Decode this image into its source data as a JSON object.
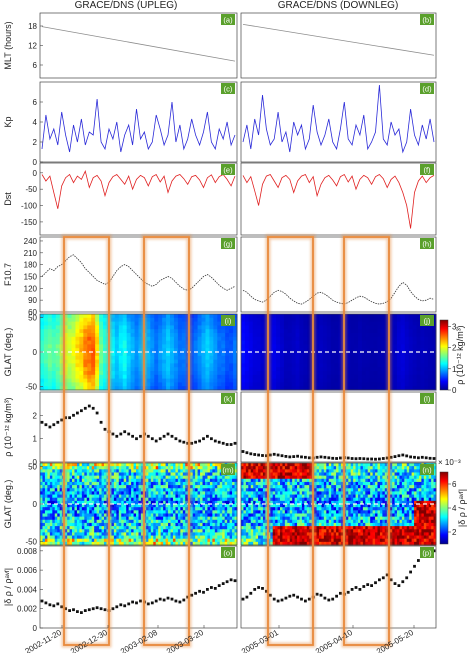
{
  "columns": [
    {
      "title": "GRACE/DNS (UPLEG)",
      "date_ticks": [
        "2002-11-20",
        "2002-12-30",
        "2003-02-08",
        "2003-03-20"
      ]
    },
    {
      "title": "GRACE/DNS (DOWNLEG)",
      "date_ticks": [
        "2005-03-01",
        "2005-04-10",
        "2005-05-20"
      ]
    }
  ],
  "panel_labels": [
    "(a)",
    "(b)",
    "(c)",
    "(d)",
    "(e)",
    "(f)",
    "(g)",
    "(h)",
    "(i)",
    "(j)",
    "(k)",
    "(l)",
    "(m)",
    "(n)",
    "(o)",
    "(p)"
  ],
  "colors": {
    "kp_line": "#2a2ad8",
    "dst_line": "#e02020",
    "mlt_line": "#8c8c8c",
    "highlight_box": "#e88a3c",
    "panel_label_bg": "#5aa02c",
    "dashed_line": "#ffffff"
  },
  "colorbars": {
    "rho": {
      "label": "ρ (10⁻¹² kg/m³)",
      "ticks": [
        "0",
        "1",
        "2",
        "3"
      ]
    },
    "drho": {
      "label": "|δ ρ / ρᵃᵛᶠ|",
      "exponent": "× 10⁻³",
      "ticks": [
        "2",
        "4",
        "6"
      ]
    }
  },
  "chart_data": [
    {
      "panel": "MLT",
      "type": "line",
      "ylabel": "MLT (hours)",
      "ylim": [
        2,
        22
      ],
      "yticks": [
        "6",
        "12",
        "18"
      ],
      "series": [
        {
          "column": "UPLEG",
          "x": [
            "2002-11-01",
            "2003-04-05"
          ],
          "y": [
            17.8,
            7.2
          ]
        },
        {
          "column": "DOWNLEG",
          "x": [
            "2005-02-10",
            "2005-06-10"
          ],
          "y": [
            18.5,
            9.0
          ]
        }
      ]
    },
    {
      "panel": "Kp",
      "type": "line",
      "ylabel": "Kp",
      "ylim": [
        0,
        8
      ],
      "yticks": [
        "0",
        "2",
        "4",
        "6"
      ],
      "series": [
        {
          "column": "UPLEG",
          "y": [
            1.3,
            4.7,
            2.3,
            3.3,
            1.7,
            5.0,
            2.7,
            1.0,
            3.7,
            2.0,
            4.3,
            1.7,
            3.0,
            2.7,
            6.3,
            2.0,
            1.3,
            3.3,
            2.3,
            4.0,
            1.0,
            2.7,
            3.7,
            1.7,
            5.3,
            2.3,
            3.0,
            1.3,
            2.0,
            4.7,
            3.3,
            1.7,
            2.7,
            6.0,
            2.0,
            3.7,
            1.3,
            2.3,
            4.3,
            2.7,
            1.7,
            3.0,
            5.0,
            2.0,
            1.3,
            3.3,
            2.3,
            4.0,
            1.7,
            2.7
          ]
        },
        {
          "column": "DOWNLEG",
          "y": [
            2.0,
            3.7,
            1.3,
            4.3,
            2.7,
            6.7,
            3.3,
            1.7,
            2.3,
            5.0,
            2.0,
            3.0,
            1.0,
            4.0,
            2.7,
            3.7,
            1.3,
            2.3,
            5.7,
            3.0,
            1.7,
            2.7,
            4.3,
            2.0,
            1.3,
            3.3,
            6.0,
            2.3,
            1.7,
            3.7,
            2.7,
            4.7,
            1.3,
            2.0,
            3.0,
            7.7,
            2.3,
            1.7,
            4.0,
            2.7,
            3.3,
            1.0,
            2.0,
            5.3,
            2.7,
            1.7,
            3.7,
            2.3,
            4.3,
            2.0
          ]
        }
      ]
    },
    {
      "panel": "Dst",
      "type": "line",
      "ylabel": "Dst",
      "ylim": [
        -190,
        30
      ],
      "yticks": [
        "-150",
        "-100",
        "-50",
        "0"
      ],
      "series": [
        {
          "column": "UPLEG",
          "y": [
            -5,
            -25,
            -10,
            -60,
            -110,
            -40,
            -15,
            -5,
            -30,
            -10,
            -20,
            5,
            -45,
            -15,
            -8,
            -25,
            -70,
            -30,
            -12,
            -5,
            -20,
            -35,
            -10,
            -50,
            -20,
            -8,
            -15,
            -40,
            -12,
            -5,
            -28,
            -10,
            -60,
            -25,
            -10,
            -5,
            -18,
            -35,
            -12,
            -8,
            -22,
            -45,
            -15,
            -6,
            -30,
            -12,
            -5,
            -20,
            -40,
            -10
          ]
        },
        {
          "column": "DOWNLEG",
          "y": [
            -8,
            -30,
            -12,
            -55,
            -100,
            -35,
            -10,
            -5,
            -25,
            -45,
            -15,
            -8,
            -20,
            -60,
            -25,
            -10,
            -5,
            -30,
            -12,
            -70,
            -35,
            -15,
            -8,
            -22,
            -40,
            -12,
            -5,
            -28,
            -10,
            -50,
            -20,
            -8,
            -15,
            -35,
            -12,
            -5,
            -18,
            -45,
            -20,
            -10,
            -30,
            -60,
            -100,
            -170,
            -60,
            -25,
            -10,
            -30,
            -15,
            -8
          ]
        }
      ]
    },
    {
      "panel": "F10.7",
      "type": "line",
      "ylabel": "F10.7",
      "ylim": [
        60,
        250
      ],
      "yticks": [
        "60",
        "90",
        "120",
        "150",
        "180",
        "210",
        "240"
      ],
      "series": [
        {
          "column": "UPLEG",
          "y": [
            150,
            160,
            170,
            165,
            175,
            180,
            190,
            200,
            205,
            195,
            185,
            170,
            160,
            150,
            140,
            135,
            130,
            135,
            150,
            165,
            175,
            180,
            175,
            165,
            155,
            145,
            135,
            130,
            125,
            130,
            140,
            145,
            150,
            145,
            135,
            125,
            118,
            115,
            120,
            130,
            140,
            150,
            155,
            148,
            138,
            128,
            120,
            115,
            120,
            125
          ]
        },
        {
          "column": "DOWNLEG",
          "y": [
            115,
            110,
            100,
            92,
            88,
            85,
            90,
            100,
            110,
            115,
            112,
            105,
            95,
            88,
            82,
            80,
            85,
            92,
            100,
            108,
            110,
            105,
            98,
            90,
            85,
            82,
            80,
            84,
            90,
            96,
            100,
            98,
            92,
            86,
            82,
            80,
            82,
            86,
            95,
            110,
            125,
            135,
            128,
            112,
            100,
            92,
            88,
            90,
            95,
            92
          ]
        }
      ]
    },
    {
      "panel": "rho heatmap",
      "type": "heatmap",
      "ylabel": "GLAT (deg.)",
      "ylim": [
        -55,
        55
      ],
      "yticks": [
        "-50",
        "0",
        "50"
      ],
      "colorbar_range": [
        0,
        3.3
      ],
      "colorbar_unit": "10^-12 kg/m^3",
      "series": [
        {
          "column": "UPLEG",
          "values": [
            1.4,
            1.5,
            1.6,
            1.5,
            1.6,
            1.8,
            2.0,
            1.9,
            2.0,
            2.2,
            2.3,
            2.5,
            2.6,
            2.6,
            2.2,
            1.6,
            1.4,
            1.3,
            1.2,
            1.1,
            1.2,
            1.3,
            1.1,
            1.0,
            0.9,
            1.0,
            1.1,
            1.0,
            0.9,
            0.8,
            0.9,
            1.0,
            1.1,
            1.0,
            0.9,
            0.8,
            0.8,
            0.7,
            0.7,
            0.8,
            0.9,
            1.0,
            1.1,
            1.0,
            0.9,
            0.8,
            0.8,
            0.7,
            0.7,
            0.8
          ]
        },
        {
          "column": "DOWNLEG",
          "values": [
            0.45,
            0.4,
            0.35,
            0.3,
            0.3,
            0.25,
            0.25,
            0.3,
            0.35,
            0.3,
            0.25,
            0.2,
            0.2,
            0.22,
            0.25,
            0.2,
            0.18,
            0.15,
            0.15,
            0.2,
            0.22,
            0.2,
            0.18,
            0.15,
            0.15,
            0.18,
            0.2,
            0.18,
            0.15,
            0.15,
            0.17,
            0.15,
            0.15,
            0.14,
            0.14,
            0.15,
            0.16,
            0.18,
            0.2,
            0.22,
            0.28,
            0.3,
            0.25,
            0.22,
            0.2,
            0.18,
            0.2,
            0.18,
            0.17,
            0.16
          ]
        }
      ]
    },
    {
      "panel": "rho",
      "type": "scatter",
      "ylabel": "ρ (10⁻¹² kg/m³)",
      "ylim": [
        0,
        3
      ],
      "yticks": [
        "0",
        "1",
        "2"
      ],
      "series": [
        {
          "column": "UPLEG",
          "y": [
            1.7,
            1.6,
            1.5,
            1.6,
            1.7,
            1.8,
            1.9,
            1.9,
            2.0,
            2.1,
            2.2,
            2.3,
            2.4,
            2.3,
            2.1,
            1.7,
            1.4,
            1.3,
            1.2,
            1.1,
            1.2,
            1.3,
            1.2,
            1.1,
            1.0,
            1.1,
            1.2,
            1.1,
            1.0,
            0.9,
            1.0,
            1.1,
            1.2,
            1.1,
            1.0,
            0.9,
            0.85,
            0.8,
            0.8,
            0.85,
            0.9,
            1.0,
            1.1,
            1.0,
            0.9,
            0.85,
            0.8,
            0.75,
            0.75,
            0.8
          ]
        },
        {
          "column": "DOWNLEG",
          "y": [
            0.45,
            0.4,
            0.35,
            0.32,
            0.3,
            0.28,
            0.27,
            0.3,
            0.33,
            0.3,
            0.27,
            0.24,
            0.22,
            0.23,
            0.25,
            0.22,
            0.2,
            0.18,
            0.17,
            0.2,
            0.22,
            0.2,
            0.18,
            0.16,
            0.15,
            0.17,
            0.19,
            0.17,
            0.15,
            0.14,
            0.15,
            0.14,
            0.13,
            0.13,
            0.12,
            0.13,
            0.15,
            0.17,
            0.2,
            0.23,
            0.27,
            0.3,
            0.26,
            0.22,
            0.2,
            0.18,
            0.2,
            0.18,
            0.16,
            0.15
          ]
        }
      ]
    },
    {
      "panel": "drho heatmap",
      "type": "heatmap",
      "ylabel": "GLAT (deg.)",
      "ylim": [
        -55,
        55
      ],
      "yticks": [
        "-50",
        "0",
        "50"
      ],
      "colorbar_range": [
        1,
        7
      ],
      "colorbar_unit": "x 10^-3"
    },
    {
      "panel": "drho",
      "type": "scatter",
      "ylabel": "|δ ρ / ρᵃᵛᶠ|",
      "ylim": [
        0,
        0.0085
      ],
      "yticks": [
        "0",
        "0.002",
        "0.004",
        "0.006",
        "0.008"
      ],
      "series": [
        {
          "column": "UPLEG",
          "y": [
            0.0028,
            0.0026,
            0.0024,
            0.0023,
            0.0025,
            0.0022,
            0.002,
            0.0018,
            0.0019,
            0.0017,
            0.0016,
            0.0018,
            0.0019,
            0.002,
            0.0021,
            0.002,
            0.0019,
            0.0018,
            0.002,
            0.0022,
            0.0024,
            0.0023,
            0.0025,
            0.0027,
            0.0026,
            0.0028,
            0.0027,
            0.0025,
            0.0026,
            0.0028,
            0.003,
            0.0029,
            0.0031,
            0.003,
            0.0028,
            0.0027,
            0.0029,
            0.0032,
            0.0034,
            0.0036,
            0.0038,
            0.0037,
            0.004,
            0.0042,
            0.0041,
            0.0044,
            0.0046,
            0.0048,
            0.005,
            0.0049
          ]
        },
        {
          "column": "DOWNLEG",
          "y": [
            0.003,
            0.0032,
            0.0036,
            0.004,
            0.0042,
            0.0041,
            0.0038,
            0.0034,
            0.003,
            0.0028,
            0.0029,
            0.0031,
            0.0033,
            0.0034,
            0.0032,
            0.003,
            0.0028,
            0.003,
            0.0032,
            0.0035,
            0.0034,
            0.0031,
            0.0029,
            0.003,
            0.0033,
            0.0036,
            0.0035,
            0.0037,
            0.004,
            0.0042,
            0.004,
            0.0043,
            0.0045,
            0.0044,
            0.0047,
            0.005,
            0.0052,
            0.0055,
            0.005,
            0.0046,
            0.0044,
            0.0048,
            0.0052,
            0.0058,
            0.0064,
            0.007,
            0.0074,
            0.0076,
            0.0078,
            0.008
          ]
        }
      ]
    }
  ]
}
